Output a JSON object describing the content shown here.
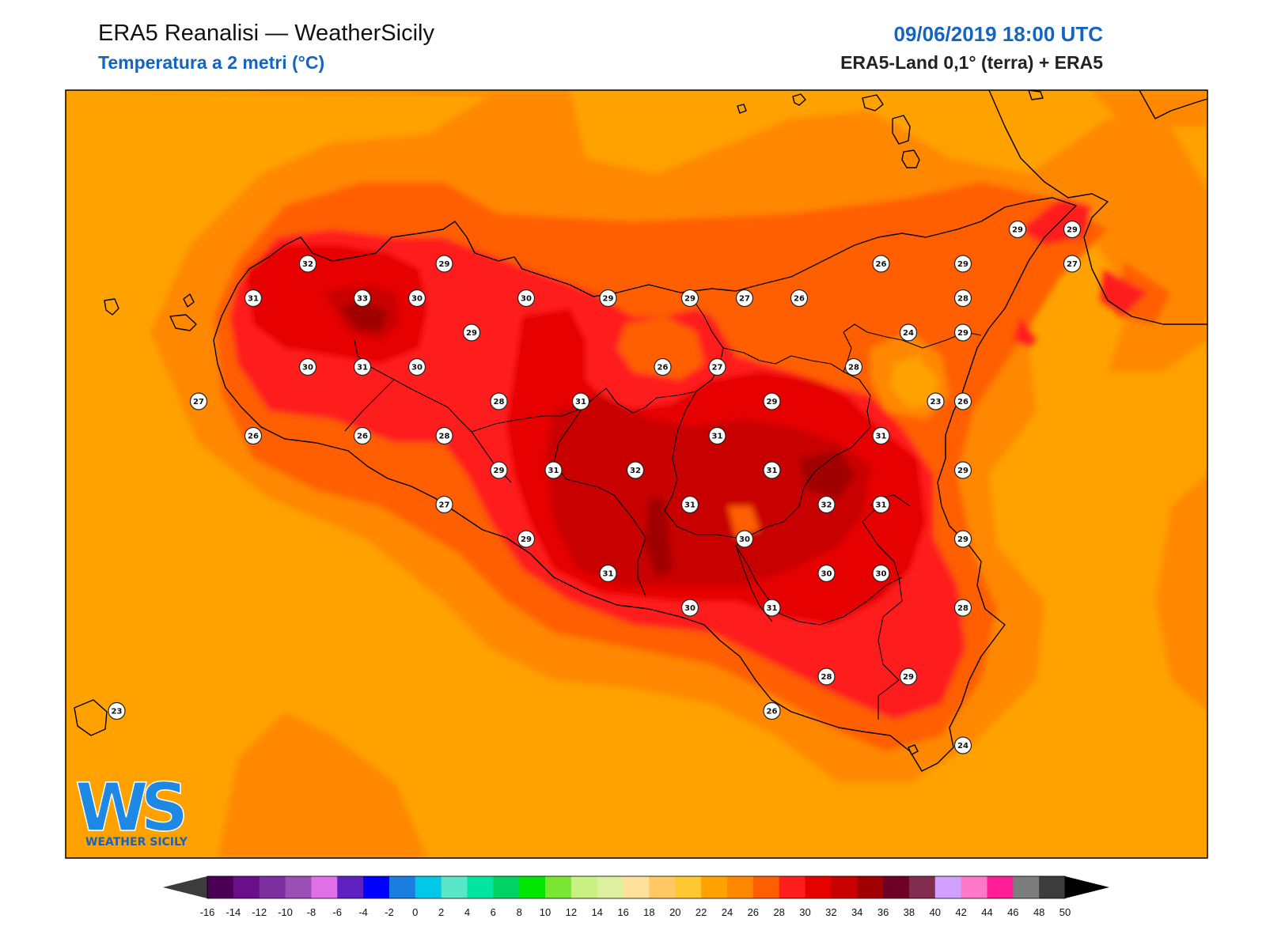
{
  "header": {
    "title": "ERA5 Reanalisi — WeatherSicily",
    "subtitle": "Temperatura a 2 metri (°C)",
    "datetime": "09/06/2019 18:00 UTC",
    "dataset": "ERA5-Land 0,1° (terra) + ERA5"
  },
  "logo": {
    "mark": "WS",
    "text": "WEATHER SICILY"
  },
  "colors": {
    "c22": "#ffa200",
    "c24": "#ff8800",
    "c26": "#ff5e00",
    "c28": "#ff1e1e",
    "c30": "#e60000",
    "c32": "#c80000",
    "c34": "#a00000"
  },
  "stations": [
    {
      "lon": 12.63,
      "lat": 38.18,
      "value": "32"
    },
    {
      "lon": 13.13,
      "lat": 38.18,
      "value": "29"
    },
    {
      "lon": 12.43,
      "lat": 38.08,
      "value": "31"
    },
    {
      "lon": 12.83,
      "lat": 38.08,
      "value": "33"
    },
    {
      "lon": 13.03,
      "lat": 38.08,
      "value": "30"
    },
    {
      "lon": 13.43,
      "lat": 38.08,
      "value": "30"
    },
    {
      "lon": 13.73,
      "lat": 38.08,
      "value": "29"
    },
    {
      "lon": 14.03,
      "lat": 38.08,
      "value": "29"
    },
    {
      "lon": 14.23,
      "lat": 38.08,
      "value": "27"
    },
    {
      "lon": 14.43,
      "lat": 38.08,
      "value": "26"
    },
    {
      "lon": 13.23,
      "lat": 37.98,
      "value": "29"
    },
    {
      "lon": 12.63,
      "lat": 37.88,
      "value": "30"
    },
    {
      "lon": 12.83,
      "lat": 37.88,
      "value": "31"
    },
    {
      "lon": 13.03,
      "lat": 37.88,
      "value": "30"
    },
    {
      "lon": 13.93,
      "lat": 37.88,
      "value": "26"
    },
    {
      "lon": 14.13,
      "lat": 37.88,
      "value": "27"
    },
    {
      "lon": 14.63,
      "lat": 37.88,
      "value": "28"
    },
    {
      "lon": 12.23,
      "lat": 37.78,
      "value": "27"
    },
    {
      "lon": 13.33,
      "lat": 37.78,
      "value": "28"
    },
    {
      "lon": 13.63,
      "lat": 37.78,
      "value": "31"
    },
    {
      "lon": 14.33,
      "lat": 37.78,
      "value": "29"
    },
    {
      "lon": 12.43,
      "lat": 37.68,
      "value": "26"
    },
    {
      "lon": 12.83,
      "lat": 37.68,
      "value": "26"
    },
    {
      "lon": 13.13,
      "lat": 37.68,
      "value": "28"
    },
    {
      "lon": 14.13,
      "lat": 37.68,
      "value": "31"
    },
    {
      "lon": 14.73,
      "lat": 37.68,
      "value": "31"
    },
    {
      "lon": 13.33,
      "lat": 37.58,
      "value": "29"
    },
    {
      "lon": 13.53,
      "lat": 37.58,
      "value": "31"
    },
    {
      "lon": 13.83,
      "lat": 37.58,
      "value": "32"
    },
    {
      "lon": 14.33,
      "lat": 37.58,
      "value": "31"
    },
    {
      "lon": 13.13,
      "lat": 37.48,
      "value": "27"
    },
    {
      "lon": 14.03,
      "lat": 37.48,
      "value": "31"
    },
    {
      "lon": 14.53,
      "lat": 37.48,
      "value": "32"
    },
    {
      "lon": 14.73,
      "lat": 37.48,
      "value": "31"
    },
    {
      "lon": 13.43,
      "lat": 37.38,
      "value": "29"
    },
    {
      "lon": 14.23,
      "lat": 37.38,
      "value": "30"
    },
    {
      "lon": 13.73,
      "lat": 37.28,
      "value": "31"
    },
    {
      "lon": 14.53,
      "lat": 37.28,
      "value": "30"
    },
    {
      "lon": 14.73,
      "lat": 37.28,
      "value": "30"
    },
    {
      "lon": 14.03,
      "lat": 37.18,
      "value": "30"
    },
    {
      "lon": 14.33,
      "lat": 37.18,
      "value": "31"
    },
    {
      "lon": 14.53,
      "lat": 36.98,
      "value": "28"
    },
    {
      "lon": 14.83,
      "lat": 36.98,
      "value": "29"
    },
    {
      "lon": 14.33,
      "lat": 36.88,
      "value": "26"
    },
    {
      "lon": 15.03,
      "lat": 36.78,
      "value": "24"
    },
    {
      "lon": 11.93,
      "lat": 36.88,
      "value": "23"
    },
    {
      "lon": 15.03,
      "lat": 38.18,
      "value": "29"
    },
    {
      "lon": 15.03,
      "lat": 38.08,
      "value": "28"
    },
    {
      "lon": 15.23,
      "lat": 38.28,
      "value": "29"
    },
    {
      "lon": 15.43,
      "lat": 38.28,
      "value": "29"
    },
    {
      "lon": 15.43,
      "lat": 38.18,
      "value": "27"
    },
    {
      "lon": 14.73,
      "lat": 38.18,
      "value": "26"
    },
    {
      "lon": 14.83,
      "lat": 37.98,
      "value": "24"
    },
    {
      "lon": 15.03,
      "lat": 37.98,
      "value": "29"
    },
    {
      "lon": 14.93,
      "lat": 37.78,
      "value": "23"
    },
    {
      "lon": 15.03,
      "lat": 37.78,
      "value": "26"
    },
    {
      "lon": 15.03,
      "lat": 37.58,
      "value": "29"
    },
    {
      "lon": 15.03,
      "lat": 37.38,
      "value": "29"
    },
    {
      "lon": 15.03,
      "lat": 37.18,
      "value": "28"
    }
  ],
  "colorbar": {
    "colors": [
      "#4b0055",
      "#6a0f8a",
      "#7d2fa0",
      "#9b4fb5",
      "#e070e8",
      "#6020c0",
      "#0000ff",
      "#1a7de0",
      "#00c8e6",
      "#5ae6c8",
      "#00e6a0",
      "#00d264",
      "#00e600",
      "#78e632",
      "#c8f082",
      "#dcf0a0",
      "#ffe19b",
      "#ffc864",
      "#ffc832",
      "#ffa200",
      "#ff8800",
      "#ff5e00",
      "#ff1e1e",
      "#e60000",
      "#c80000",
      "#a00000",
      "#6e0028",
      "#822d50",
      "#d2a0ff",
      "#ff78c8",
      "#ff1e96",
      "#7d7d7d",
      "#3c3c3c"
    ],
    "labels": [
      "-16",
      "-14",
      "-12",
      "-10",
      "-8",
      "-6",
      "-4",
      "-2",
      "0",
      "2",
      "4",
      "6",
      "8",
      "10",
      "12",
      "14",
      "16",
      "18",
      "20",
      "22",
      "24",
      "26",
      "28",
      "30",
      "32",
      "34",
      "36",
      "38",
      "40",
      "42",
      "44",
      "46",
      "48",
      "50"
    ],
    "under_color": "#3c3c3c",
    "over_color": "#000000"
  }
}
